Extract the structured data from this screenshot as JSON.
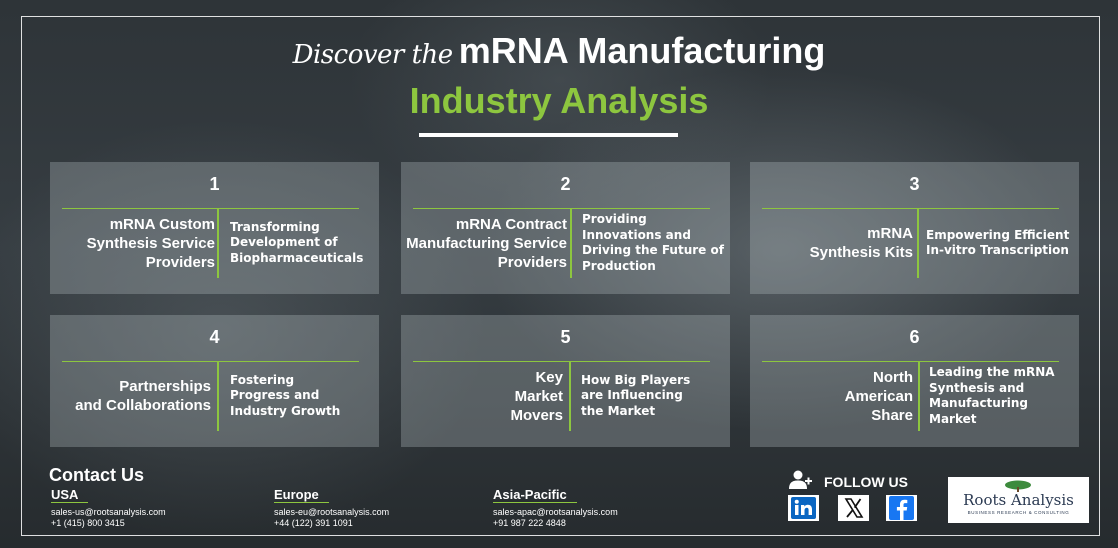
{
  "header": {
    "script_text": "Discover the",
    "title_bold": "mRNA Manufacturing",
    "subtitle": "Industry Analysis"
  },
  "colors": {
    "accent_green": "#8dc63f",
    "text": "#ffffff",
    "logo_navy": "#2b3a52"
  },
  "cards": [
    {
      "number": "1",
      "label_lines": [
        "mRNA Custom",
        "Synthesis Service",
        "Providers"
      ],
      "desc_lines": [
        "Transforming",
        "Development of",
        "Biopharmaceuticals"
      ]
    },
    {
      "number": "2",
      "label_lines": [
        "mRNA Contract",
        "Manufacturing Service",
        "Providers"
      ],
      "desc_lines": [
        "Providing",
        "Innovations and",
        "Driving the Future of",
        "Production"
      ]
    },
    {
      "number": "3",
      "label_lines": [
        "mRNA",
        "Synthesis Kits"
      ],
      "desc_lines": [
        "Empowering Efficient",
        "In-vitro Transcription"
      ]
    },
    {
      "number": "4",
      "label_lines": [
        "Partnerships",
        "and Collaborations"
      ],
      "desc_lines": [
        "Fostering",
        "Progress and",
        "Industry Growth"
      ]
    },
    {
      "number": "5",
      "label_lines": [
        "Key",
        "Market",
        "Movers"
      ],
      "desc_lines": [
        "How Big Players",
        "are Influencing",
        "the Market"
      ]
    },
    {
      "number": "6",
      "label_lines": [
        "North",
        "American",
        "Share"
      ],
      "desc_lines": [
        "Leading the mRNA",
        "Synthesis and",
        "Manufacturing Market"
      ]
    }
  ],
  "contact": {
    "title": "Contact Us",
    "regions": [
      {
        "name": "USA",
        "email": "sales-us@rootsanalysis.com",
        "phone": "+1 (415) 800 3415"
      },
      {
        "name": "Europe",
        "email": "sales-eu@rootsanalysis.com",
        "phone": "+44 (122) 391 1091"
      },
      {
        "name": "Asia-Pacific",
        "email": "sales-apac@rootsanalysis.com",
        "phone": "+91 987 222 4848"
      }
    ]
  },
  "social": {
    "follow_label": "FOLLOW US",
    "icons": [
      "user-follow-icon",
      "linkedin-icon",
      "x-icon",
      "facebook-icon"
    ]
  },
  "logo": {
    "name": "Roots Analysis",
    "tagline": "BUSINESS RESEARCH & CONSULTING"
  }
}
